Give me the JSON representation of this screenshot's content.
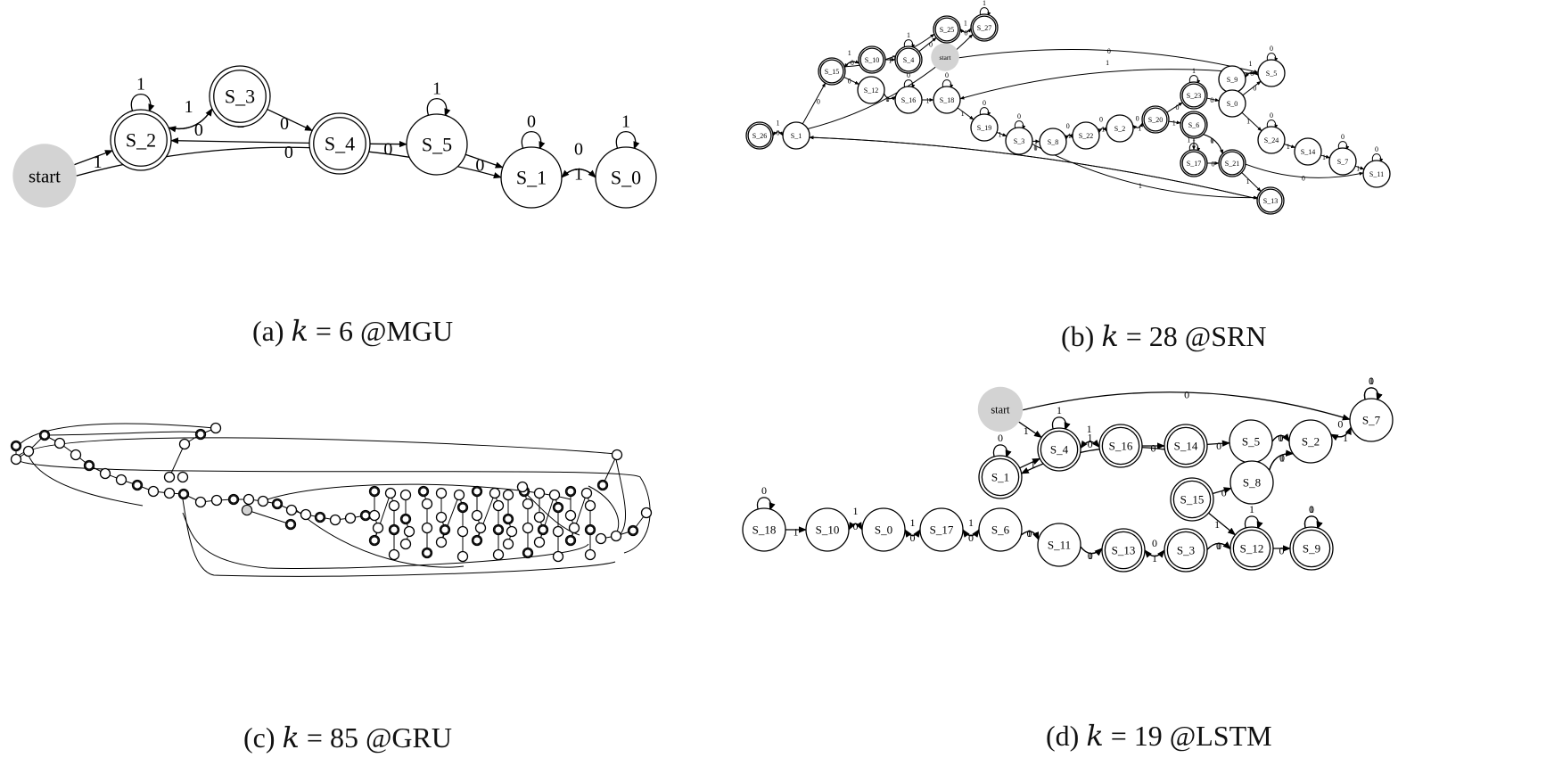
{
  "captions": {
    "a": {
      "prefix": "(a) ",
      "var": "k",
      "rest": " = 6 @MGU"
    },
    "b": {
      "prefix": "(b) ",
      "var": "k",
      "rest": " = 28 @SRN"
    },
    "c": {
      "prefix": "(c) ",
      "var": "k",
      "rest": " = 85 @GRU"
    },
    "d": {
      "prefix": "(d) ",
      "var": "k",
      "rest": " = 19 @LSTM"
    }
  },
  "graph_a": {
    "nodes": [
      {
        "id": "start",
        "label": "start",
        "kind": "start"
      },
      {
        "id": "S_2",
        "label": "S_2",
        "kind": "accept"
      },
      {
        "id": "S_3",
        "label": "S_3",
        "kind": "accept"
      },
      {
        "id": "S_4",
        "label": "S_4",
        "kind": "accept"
      },
      {
        "id": "S_5",
        "label": "S_5",
        "kind": "state"
      },
      {
        "id": "S_1",
        "label": "S_1",
        "kind": "state"
      },
      {
        "id": "S_0",
        "label": "S_0",
        "kind": "state"
      }
    ],
    "edges": [
      {
        "from": "start",
        "to": "S_2",
        "label": "1"
      },
      {
        "from": "start",
        "to": "S_1",
        "label": "0"
      },
      {
        "from": "S_2",
        "to": "S_2",
        "label": "1"
      },
      {
        "from": "S_2",
        "to": "S_3",
        "label": "0"
      },
      {
        "from": "S_3",
        "to": "S_2",
        "label": "1"
      },
      {
        "from": "S_3",
        "to": "S_4",
        "label": "0"
      },
      {
        "from": "S_4",
        "to": "S_2",
        "label": "1"
      },
      {
        "from": "S_4",
        "to": "S_5",
        "label": "0"
      },
      {
        "from": "S_5",
        "to": "S_5",
        "label": "1"
      },
      {
        "from": "S_5",
        "to": "S_1",
        "label": "0"
      },
      {
        "from": "S_1",
        "to": "S_1",
        "label": "0"
      },
      {
        "from": "S_1",
        "to": "S_0",
        "label": "1"
      },
      {
        "from": "S_0",
        "to": "S_0",
        "label": "1"
      },
      {
        "from": "S_0",
        "to": "S_1",
        "label": "0"
      }
    ]
  },
  "graph_b": {
    "nodes": [
      {
        "id": "start",
        "label": "start",
        "kind": "start"
      },
      {
        "id": "S_26",
        "label": "S_26",
        "kind": "accept"
      },
      {
        "id": "S_1",
        "label": "S_1",
        "kind": "state"
      },
      {
        "id": "S_15",
        "label": "S_15",
        "kind": "accept"
      },
      {
        "id": "S_10",
        "label": "S_10",
        "kind": "accept"
      },
      {
        "id": "S_4",
        "label": "S_4",
        "kind": "accept"
      },
      {
        "id": "S_25",
        "label": "S_25",
        "kind": "accept"
      },
      {
        "id": "S_27",
        "label": "S_27",
        "kind": "accept"
      },
      {
        "id": "S_12",
        "label": "S_12",
        "kind": "state"
      },
      {
        "id": "S_16",
        "label": "S_16",
        "kind": "state"
      },
      {
        "id": "S_18",
        "label": "S_18",
        "kind": "state"
      },
      {
        "id": "S_19",
        "label": "S_19",
        "kind": "state"
      },
      {
        "id": "S_3",
        "label": "S_3",
        "kind": "state"
      },
      {
        "id": "S_8",
        "label": "S_8",
        "kind": "state"
      },
      {
        "id": "S_22",
        "label": "S_22",
        "kind": "state"
      },
      {
        "id": "S_2",
        "label": "S_2",
        "kind": "state"
      },
      {
        "id": "S_20",
        "label": "S_20",
        "kind": "accept"
      },
      {
        "id": "S_23",
        "label": "S_23",
        "kind": "accept"
      },
      {
        "id": "S_6",
        "label": "S_6",
        "kind": "accept"
      },
      {
        "id": "S_17",
        "label": "S_17",
        "kind": "accept"
      },
      {
        "id": "S_21",
        "label": "S_21",
        "kind": "accept"
      },
      {
        "id": "S_13",
        "label": "S_13",
        "kind": "accept"
      },
      {
        "id": "S_9",
        "label": "S_9",
        "kind": "state"
      },
      {
        "id": "S_5",
        "label": "S_5",
        "kind": "state"
      },
      {
        "id": "S_0",
        "label": "S_0",
        "kind": "state"
      },
      {
        "id": "S_24",
        "label": "S_24",
        "kind": "state"
      },
      {
        "id": "S_14",
        "label": "S_14",
        "kind": "state"
      },
      {
        "id": "S_7",
        "label": "S_7",
        "kind": "state"
      },
      {
        "id": "S_11",
        "label": "S_11",
        "kind": "state"
      }
    ],
    "edges": [
      {
        "from": "S_26",
        "to": "S_1",
        "label": "0"
      },
      {
        "from": "S_1",
        "to": "S_26",
        "label": "1"
      },
      {
        "from": "S_1",
        "to": "S_15",
        "label": "0"
      },
      {
        "from": "S_1",
        "to": "S_27",
        "label": "1"
      },
      {
        "from": "S_15",
        "to": "S_10",
        "label": "0"
      },
      {
        "from": "S_10",
        "to": "S_15",
        "label": "1"
      },
      {
        "from": "S_15",
        "to": "S_25",
        "label": "0"
      },
      {
        "from": "S_15",
        "to": "S_12",
        "label": "0"
      },
      {
        "from": "S_10",
        "to": "S_4",
        "label": "1"
      },
      {
        "from": "S_4",
        "to": "S_4",
        "label": "1"
      },
      {
        "from": "S_4",
        "to": "S_25",
        "label": "0"
      },
      {
        "from": "S_25",
        "to": "S_27",
        "label": "0"
      },
      {
        "from": "S_27",
        "to": "S_25",
        "label": "1"
      },
      {
        "from": "S_27",
        "to": "S_27",
        "label": "1"
      },
      {
        "from": "S_12",
        "to": "S_16",
        "label": "1"
      },
      {
        "from": "S_12",
        "to": "S_16",
        "label": "0"
      },
      {
        "from": "S_16",
        "to": "S_16",
        "label": "0"
      },
      {
        "from": "S_16",
        "to": "S_18",
        "label": "1"
      },
      {
        "from": "S_18",
        "to": "S_18",
        "label": "0"
      },
      {
        "from": "S_18",
        "to": "S_19",
        "label": "1"
      },
      {
        "from": "S_19",
        "to": "S_19",
        "label": "0"
      },
      {
        "from": "S_19",
        "to": "S_3",
        "label": "1"
      },
      {
        "from": "S_3",
        "to": "S_3",
        "label": "0"
      },
      {
        "from": "S_3",
        "to": "S_8",
        "label": "1"
      },
      {
        "from": "S_8",
        "to": "S_22",
        "label": "1"
      },
      {
        "from": "S_22",
        "to": "S_8",
        "label": "0"
      },
      {
        "from": "S_22",
        "to": "S_2",
        "label": "1"
      },
      {
        "from": "S_2",
        "to": "S_22",
        "label": "0"
      },
      {
        "from": "S_2",
        "to": "S_20",
        "label": "1"
      },
      {
        "from": "S_20",
        "to": "S_2",
        "label": "0"
      },
      {
        "from": "S_20",
        "to": "S_23",
        "label": "0"
      },
      {
        "from": "S_20",
        "to": "S_6",
        "label": "1"
      },
      {
        "from": "S_23",
        "to": "S_23",
        "label": "1"
      },
      {
        "from": "S_23",
        "to": "S_0",
        "label": "0"
      },
      {
        "from": "S_6",
        "to": "S_17",
        "label": "1"
      },
      {
        "from": "S_6",
        "to": "S_21",
        "label": "0"
      },
      {
        "from": "S_6",
        "to": "S_21",
        "label": "1"
      },
      {
        "from": "S_17",
        "to": "S_21",
        "label": "0"
      },
      {
        "from": "S_17",
        "to": "S_17",
        "label": "1"
      },
      {
        "from": "S_21",
        "to": "S_13",
        "label": "1"
      },
      {
        "from": "S_21",
        "to": "S_11",
        "label": "0"
      },
      {
        "from": "S_13",
        "to": "S_1",
        "label": "0"
      },
      {
        "from": "S_13",
        "to": "S_1",
        "label": "1"
      },
      {
        "from": "S_3",
        "to": "S_13",
        "label": "1"
      },
      {
        "from": "start",
        "to": "S_5",
        "label": "0"
      },
      {
        "from": "S_5",
        "to": "S_18",
        "label": "1"
      },
      {
        "from": "S_9",
        "to": "S_5",
        "label": "0"
      },
      {
        "from": "S_5",
        "to": "S_9",
        "label": "1"
      },
      {
        "from": "S_0",
        "to": "S_5",
        "label": "0"
      },
      {
        "from": "S_5",
        "to": "S_5",
        "label": "0"
      },
      {
        "from": "S_0",
        "to": "S_24",
        "label": "1"
      },
      {
        "from": "S_24",
        "to": "S_24",
        "label": "0"
      },
      {
        "from": "S_24",
        "to": "S_14",
        "label": "1"
      },
      {
        "from": "S_14",
        "to": "S_7",
        "label": "1"
      },
      {
        "from": "S_7",
        "to": "S_7",
        "label": "0"
      },
      {
        "from": "S_7",
        "to": "S_11",
        "label": "1"
      },
      {
        "from": "S_11",
        "to": "S_11",
        "label": "0"
      }
    ]
  },
  "graph_c": {
    "note_hidden": "",
    "nodes": [],
    "edges": []
  },
  "graph_d": {
    "nodes": [
      {
        "id": "start",
        "label": "start",
        "kind": "start"
      },
      {
        "id": "S_1",
        "label": "S_1",
        "kind": "accept"
      },
      {
        "id": "S_4",
        "label": "S_4",
        "kind": "accept"
      },
      {
        "id": "S_16",
        "label": "S_16",
        "kind": "accept"
      },
      {
        "id": "S_14",
        "label": "S_14",
        "kind": "accept"
      },
      {
        "id": "S_5",
        "label": "S_5",
        "kind": "state"
      },
      {
        "id": "S_2",
        "label": "S_2",
        "kind": "state"
      },
      {
        "id": "S_7",
        "label": "S_7",
        "kind": "state"
      },
      {
        "id": "S_15",
        "label": "S_15",
        "kind": "accept"
      },
      {
        "id": "S_8",
        "label": "S_8",
        "kind": "state"
      },
      {
        "id": "S_18",
        "label": "S_18",
        "kind": "state"
      },
      {
        "id": "S_10",
        "label": "S_10",
        "kind": "state"
      },
      {
        "id": "S_0",
        "label": "S_0",
        "kind": "state"
      },
      {
        "id": "S_17",
        "label": "S_17",
        "kind": "state"
      },
      {
        "id": "S_6",
        "label": "S_6",
        "kind": "state"
      },
      {
        "id": "S_11",
        "label": "S_11",
        "kind": "state"
      },
      {
        "id": "S_13",
        "label": "S_13",
        "kind": "accept"
      },
      {
        "id": "S_3",
        "label": "S_3",
        "kind": "accept"
      },
      {
        "id": "S_12",
        "label": "S_12",
        "kind": "accept"
      },
      {
        "id": "S_9",
        "label": "S_9",
        "kind": "accept"
      }
    ],
    "edges": [
      {
        "from": "start",
        "to": "S_4",
        "label": "1"
      },
      {
        "from": "start",
        "to": "S_7",
        "label": "0"
      },
      {
        "from": "S_1",
        "to": "S_1",
        "label": "0"
      },
      {
        "from": "S_1",
        "to": "S_4",
        "label": "1"
      },
      {
        "from": "S_4",
        "to": "S_4",
        "label": "1"
      },
      {
        "from": "S_4",
        "to": "S_16",
        "label": "0"
      },
      {
        "from": "S_16",
        "to": "S_4",
        "label": "1"
      },
      {
        "from": "S_16",
        "to": "S_14",
        "label": "0"
      },
      {
        "from": "S_14",
        "to": "S_1",
        "label": "1"
      },
      {
        "from": "S_14",
        "to": "S_5",
        "label": "0"
      },
      {
        "from": "S_5",
        "to": "S_2",
        "label": "0"
      },
      {
        "from": "S_5",
        "to": "S_2",
        "label": "1"
      },
      {
        "from": "S_2",
        "to": "S_7",
        "label": "1"
      },
      {
        "from": "S_7",
        "to": "S_2",
        "label": "0"
      },
      {
        "from": "S_7",
        "to": "S_7",
        "label": "1"
      },
      {
        "from": "S_7",
        "to": "S_7",
        "label": "0"
      },
      {
        "from": "S_15",
        "to": "S_8",
        "label": "0"
      },
      {
        "from": "S_8",
        "to": "S_2",
        "label": "0"
      },
      {
        "from": "S_8",
        "to": "S_2",
        "label": "1"
      },
      {
        "from": "S_15",
        "to": "S_12",
        "label": "1"
      },
      {
        "from": "S_18",
        "to": "S_18",
        "label": "0"
      },
      {
        "from": "S_18",
        "to": "S_10",
        "label": "1"
      },
      {
        "from": "S_10",
        "to": "S_0",
        "label": "0"
      },
      {
        "from": "S_0",
        "to": "S_10",
        "label": "1"
      },
      {
        "from": "S_0",
        "to": "S_17",
        "label": "0"
      },
      {
        "from": "S_17",
        "to": "S_0",
        "label": "1"
      },
      {
        "from": "S_17",
        "to": "S_6",
        "label": "0"
      },
      {
        "from": "S_6",
        "to": "S_17",
        "label": "1"
      },
      {
        "from": "S_6",
        "to": "S_11",
        "label": "0"
      },
      {
        "from": "S_6",
        "to": "S_11",
        "label": "1"
      },
      {
        "from": "S_11",
        "to": "S_13",
        "label": "0"
      },
      {
        "from": "S_11",
        "to": "S_13",
        "label": "1"
      },
      {
        "from": "S_13",
        "to": "S_3",
        "label": "1"
      },
      {
        "from": "S_3",
        "to": "S_13",
        "label": "0"
      },
      {
        "from": "S_3",
        "to": "S_12",
        "label": "0"
      },
      {
        "from": "S_3",
        "to": "S_12",
        "label": "1"
      },
      {
        "from": "S_12",
        "to": "S_12",
        "label": "1"
      },
      {
        "from": "S_12",
        "to": "S_9",
        "label": "0"
      },
      {
        "from": "S_9",
        "to": "S_9",
        "label": "1"
      },
      {
        "from": "S_9",
        "to": "S_9",
        "label": "0"
      }
    ]
  }
}
